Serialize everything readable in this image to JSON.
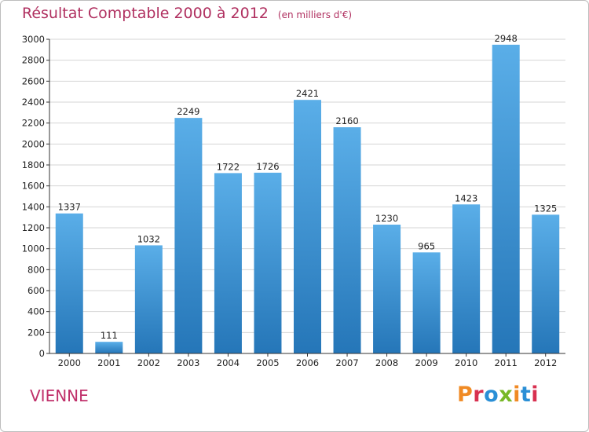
{
  "header": {
    "title": "Résultat Comptable 2000 à 2012",
    "unit": "(en milliers d'€)"
  },
  "footer": {
    "city": "VIENNE",
    "logo": "Proxiti"
  },
  "colors": {
    "title": "#b03060",
    "bar_light": "#5aaee8",
    "bar_dark": "#2576b8",
    "grid": "#d4d4d4",
    "logo_letters": [
      "#f08a24",
      "#d83050",
      "#2a8fd6",
      "#78b828",
      "#f08a24",
      "#2a8fd6",
      "#d83050"
    ]
  },
  "chart_data": {
    "type": "bar",
    "title": "Résultat Comptable 2000 à 2012",
    "subtitle": "(en milliers d'€)",
    "xlabel": "",
    "ylabel": "",
    "categories": [
      "2000",
      "2001",
      "2002",
      "2003",
      "2004",
      "2005",
      "2006",
      "2007",
      "2008",
      "2009",
      "2010",
      "2011",
      "2012"
    ],
    "values": [
      1337,
      111,
      1032,
      2249,
      1722,
      1726,
      2421,
      2160,
      1230,
      965,
      1423,
      2948,
      1325
    ],
    "ylim": [
      0,
      3000
    ],
    "yticks": [
      0,
      200,
      400,
      600,
      800,
      1000,
      1200,
      1400,
      1600,
      1800,
      2000,
      2200,
      2400,
      2600,
      2800,
      3000
    ],
    "grid": true,
    "legend": "none"
  }
}
